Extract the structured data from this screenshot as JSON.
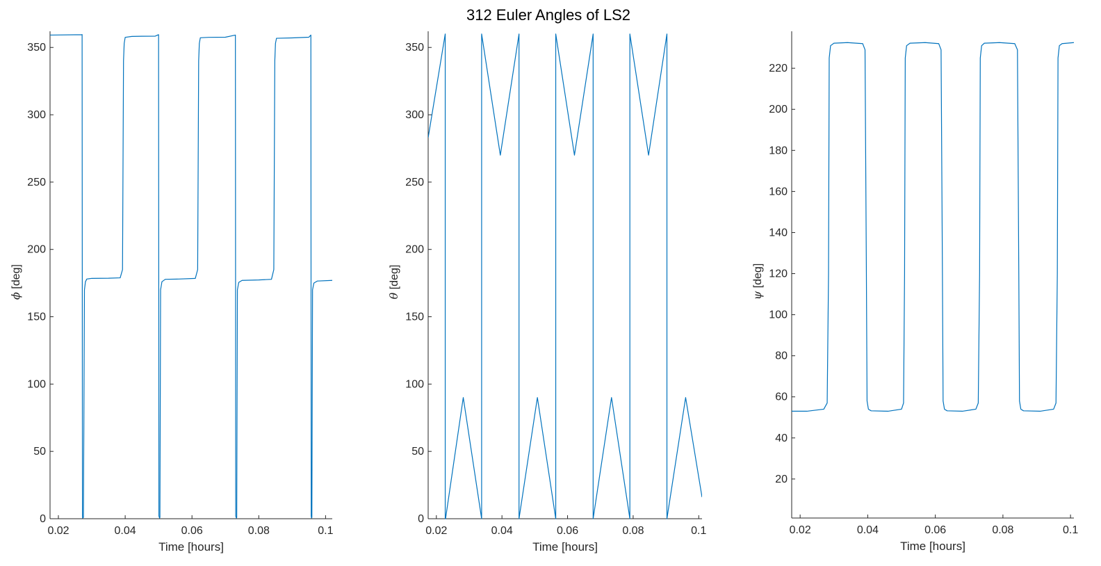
{
  "figure": {
    "title": "312 Euler Angles of LS2"
  },
  "colors": {
    "series": "#0072BD",
    "axis": "#262626"
  },
  "chart_data": [
    {
      "type": "line",
      "title": "",
      "xlabel": "Time [hours]",
      "ylabel_symbol": "ϕ",
      "ylabel_unit": " [deg]",
      "xlim": [
        0.0175,
        0.102
      ],
      "ylim": [
        0,
        362
      ],
      "xticks": [
        0.02,
        0.04,
        0.06,
        0.08,
        0.1
      ],
      "xtick_labels": [
        "0.02",
        "0.04",
        "0.06",
        "0.08",
        "0.1"
      ],
      "yticks": [
        0,
        50,
        100,
        150,
        200,
        250,
        300,
        350
      ],
      "ytick_labels": [
        "0",
        "50",
        "100",
        "150",
        "200",
        "250",
        "300",
        "350"
      ],
      "grid": false,
      "series": [
        {
          "x": [
            0.0175,
            0.027,
            0.0271,
            0.0272,
            0.02725,
            0.0275,
            0.0278,
            0.0281,
            0.0285,
            0.03,
            0.035,
            0.0385,
            0.0392,
            0.0395,
            0.0397,
            0.04,
            0.042,
            0.045,
            0.049,
            0.05,
            0.0501,
            0.0503,
            0.0504,
            0.0506,
            0.051,
            0.052,
            0.056,
            0.061,
            0.0617,
            0.062,
            0.0622,
            0.0625,
            0.065,
            0.07,
            0.073,
            0.0731,
            0.0733,
            0.0734,
            0.0736,
            0.074,
            0.075,
            0.08,
            0.0838,
            0.0845,
            0.0848,
            0.085,
            0.0853,
            0.09,
            0.095,
            0.0956,
            0.0957,
            0.0958,
            0.0959,
            0.0961,
            0.0965,
            0.0975,
            0.102
          ],
          "y": [
            359.2,
            359.5,
            359.6,
            2,
            0.5,
            1,
            170,
            176,
            178,
            178.5,
            178.6,
            178.9,
            185,
            340,
            353,
            357.5,
            358.2,
            358.3,
            358.4,
            359.5,
            2,
            0.5,
            1,
            170,
            176,
            177.8,
            178,
            178.5,
            185,
            340,
            353,
            357.2,
            357.5,
            357.6,
            359.2,
            2,
            0.5,
            1,
            170,
            175.5,
            177,
            177.3,
            177.8,
            185,
            340,
            353,
            356.8,
            357.1,
            357.6,
            359.2,
            2,
            0.5,
            1,
            170,
            175,
            176.5,
            177
          ]
        }
      ]
    },
    {
      "type": "line",
      "title": "",
      "xlabel": "Time [hours]",
      "ylabel_symbol": "θ",
      "ylabel_unit": " [deg]",
      "xlim": [
        0.0175,
        0.101
      ],
      "ylim": [
        0,
        362
      ],
      "xticks": [
        0.02,
        0.04,
        0.06,
        0.08,
        0.1
      ],
      "xtick_labels": [
        "0.02",
        "0.04",
        "0.06",
        "0.08",
        "0.1"
      ],
      "yticks": [
        0,
        50,
        100,
        150,
        200,
        250,
        300,
        350
      ],
      "ytick_labels": [
        "0",
        "50",
        "100",
        "150",
        "200",
        "250",
        "300",
        "350"
      ],
      "grid": false,
      "series": [
        {
          "x": [
            0.0175,
            0.0227,
            0.0227,
            0.0228,
            0.0282,
            0.0338,
            0.0338,
            0.0395,
            0.0452,
            0.0452,
            0.0508,
            0.0564,
            0.0564,
            0.0621,
            0.0678,
            0.0678,
            0.0734,
            0.079,
            0.079,
            0.0847,
            0.0903,
            0.0903,
            0.096,
            0.101
          ],
          "y": [
            283,
            360,
            0,
            0,
            90,
            0,
            360,
            270,
            360,
            0,
            90,
            0,
            360,
            270,
            360,
            0,
            90,
            0,
            360,
            270,
            360,
            0,
            90,
            16
          ]
        }
      ]
    },
    {
      "type": "line",
      "title": "",
      "xlabel": "Time [hours]",
      "ylabel_symbol": "ψ",
      "ylabel_unit": " [deg]",
      "xlim": [
        0.0175,
        0.101
      ],
      "ylim": [
        1,
        238
      ],
      "xticks": [
        0.02,
        0.04,
        0.06,
        0.08,
        0.1
      ],
      "xtick_labels": [
        "0.02",
        "0.04",
        "0.06",
        "0.08",
        "0.1"
      ],
      "yticks": [
        20,
        40,
        60,
        80,
        100,
        120,
        140,
        160,
        180,
        200,
        220
      ],
      "ytick_labels": [
        "20",
        "40",
        "60",
        "80",
        "100",
        "120",
        "140",
        "160",
        "180",
        "200",
        "220"
      ],
      "grid": false,
      "series": [
        {
          "x": [
            0.0175,
            0.022,
            0.027,
            0.028,
            0.0284,
            0.0286,
            0.029,
            0.03,
            0.034,
            0.0385,
            0.0392,
            0.0396,
            0.0398,
            0.0402,
            0.041,
            0.046,
            0.05,
            0.0506,
            0.0509,
            0.0511,
            0.0515,
            0.0525,
            0.057,
            0.061,
            0.0617,
            0.0621,
            0.0623,
            0.0627,
            0.0635,
            0.068,
            0.072,
            0.0727,
            0.0731,
            0.0733,
            0.0737,
            0.0745,
            0.079,
            0.0835,
            0.0843,
            0.0847,
            0.0849,
            0.0853,
            0.0861,
            0.091,
            0.095,
            0.0957,
            0.0961,
            0.0963,
            0.0967,
            0.0975,
            0.101
          ],
          "y": [
            53,
            53,
            54,
            57,
            120,
            225,
            231,
            232.2,
            232.5,
            232,
            229,
            120,
            58,
            54,
            53.2,
            53,
            54,
            57,
            120,
            225,
            231,
            232.2,
            232.5,
            232,
            229,
            120,
            58,
            54,
            53.2,
            53,
            54,
            57,
            120,
            225,
            231,
            232.2,
            232.5,
            232,
            229,
            120,
            58,
            54,
            53.2,
            53,
            54,
            57,
            120,
            225,
            231,
            232,
            232.5
          ]
        }
      ]
    }
  ]
}
